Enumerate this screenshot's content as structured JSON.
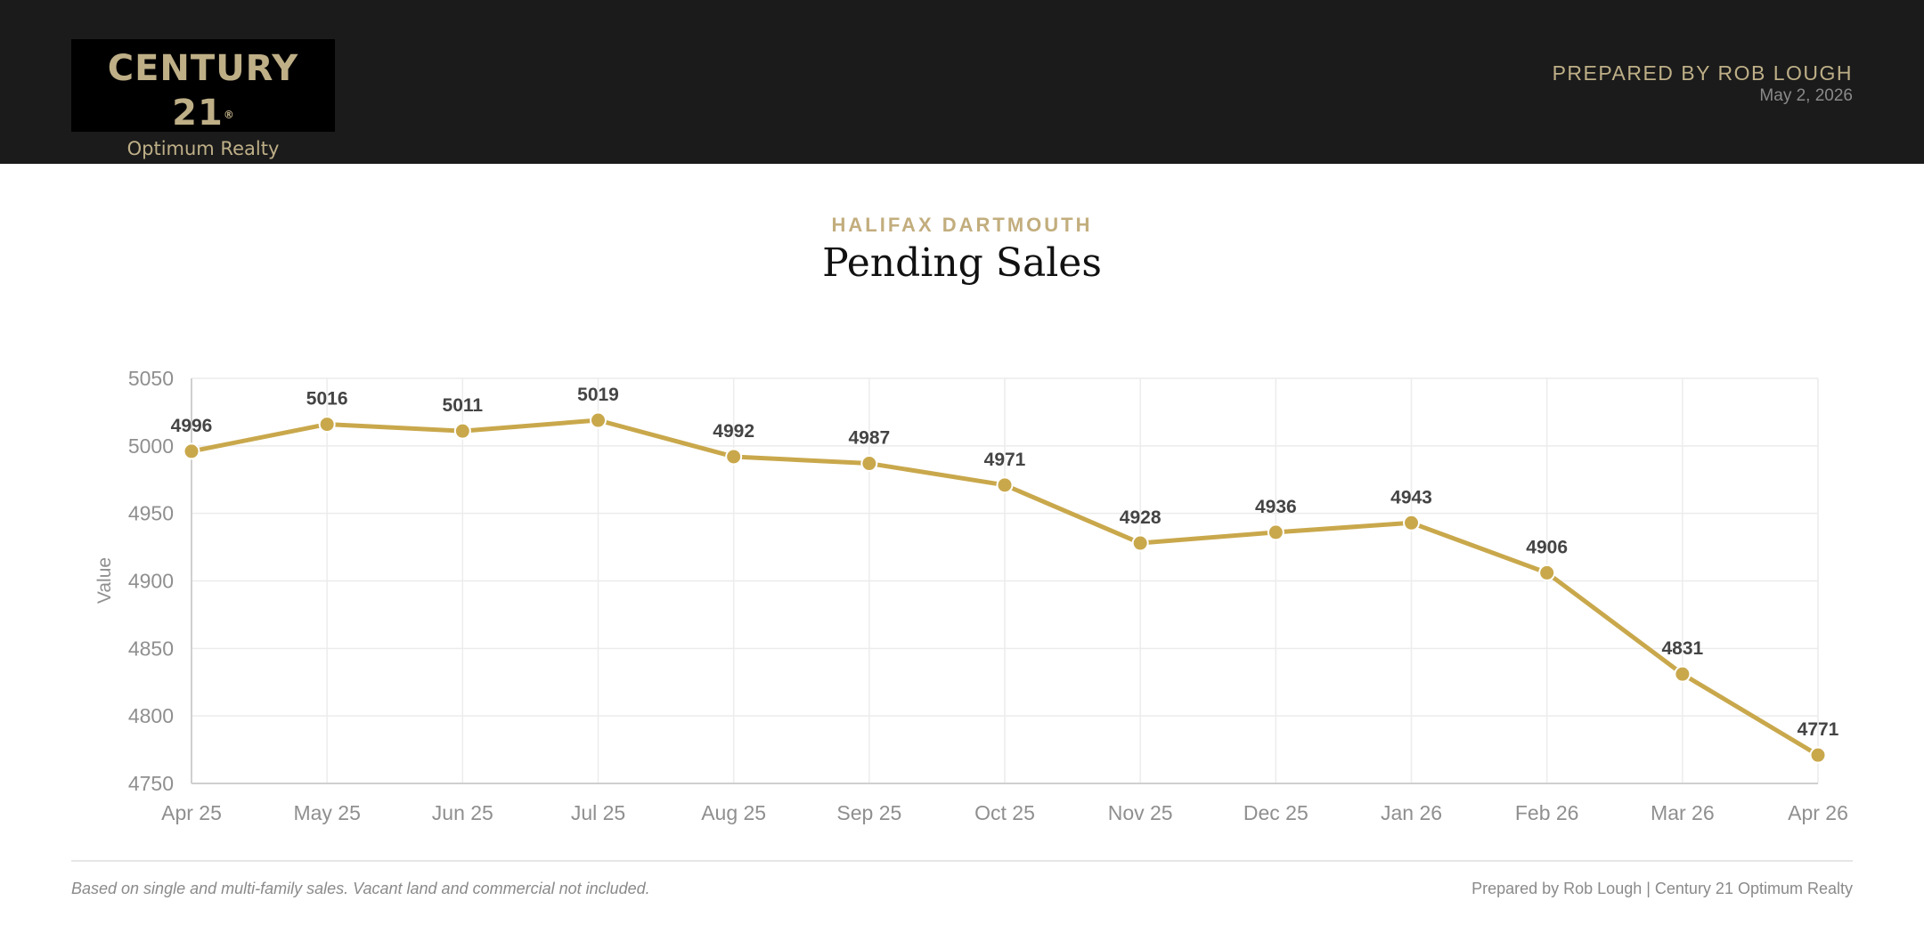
{
  "header": {
    "logo_main": "CENTURY 21",
    "logo_reg": "®",
    "logo_sub": "Optimum Realty",
    "prepared_by": "PREPARED BY ROB LOUGH",
    "date": "May 2, 2026"
  },
  "report": {
    "region": "HALIFAX DARTMOUTH",
    "title": "Pending Sales"
  },
  "footer": {
    "note": "Based on single and multi-family sales. Vacant land and commercial not included.",
    "credit": "Prepared by Rob Lough | Century 21 Optimum Realty"
  },
  "colors": {
    "header_bg": "#1b1b1b",
    "gold": "#c9a84c",
    "accent_text": "#beaf87"
  },
  "chart_data": {
    "type": "line",
    "ylabel": "Value",
    "xlabel": "",
    "categories": [
      "Apr 25",
      "May 25",
      "Jun 25",
      "Jul 25",
      "Aug 25",
      "Sep 25",
      "Oct 25",
      "Nov 25",
      "Dec 25",
      "Jan 26",
      "Feb 26",
      "Mar 26",
      "Apr 26"
    ],
    "series": [
      {
        "values": [
          4996,
          5016,
          5011,
          5019,
          4992,
          4987,
          4971,
          4928,
          4936,
          4943,
          4906,
          4831,
          4771
        ]
      }
    ],
    "ylim": [
      4750,
      5050
    ],
    "yticks": [
      4750,
      4800,
      4850,
      4900,
      4950,
      5000,
      5050
    ],
    "grid": true,
    "data_labels": true,
    "legend": "none"
  }
}
